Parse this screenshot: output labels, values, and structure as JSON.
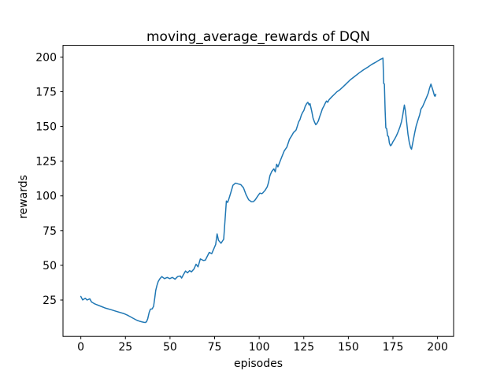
{
  "figure": {
    "title": "moving_average_rewards of DQN",
    "xlabel": "episodes",
    "ylabel": "rewards"
  },
  "chart_data": {
    "type": "line",
    "title": "moving_average_rewards of DQN",
    "xlabel": "episodes",
    "ylabel": "rewards",
    "x_ticks": [
      0,
      25,
      50,
      75,
      100,
      125,
      150,
      175,
      200
    ],
    "y_ticks": [
      25,
      50,
      75,
      100,
      125,
      150,
      175,
      200
    ],
    "xlim": [
      -10,
      209
    ],
    "ylim": [
      -1.2,
      208.4
    ],
    "grid": false,
    "legend_position": "none",
    "background_color": "#ffffff",
    "axes_color": "#000000",
    "series": [
      {
        "name": "moving_average_rewards",
        "color": "#1f77b4",
        "points": [
          [
            0,
            27.6
          ],
          [
            1,
            25.1
          ],
          [
            2.5,
            26.3
          ],
          [
            3.5,
            25.0
          ],
          [
            5,
            25.9
          ],
          [
            6,
            23.6
          ],
          [
            8,
            22.1
          ],
          [
            11,
            20.6
          ],
          [
            14,
            19.1
          ],
          [
            17,
            18.0
          ],
          [
            20,
            16.8
          ],
          [
            24,
            15.3
          ],
          [
            26,
            14.2
          ],
          [
            28,
            12.8
          ],
          [
            30,
            11.4
          ],
          [
            31.5,
            10.4
          ],
          [
            33,
            9.7
          ],
          [
            34.5,
            9.2
          ],
          [
            36,
            8.8
          ],
          [
            36.8,
            9.3
          ],
          [
            37.5,
            11.5
          ],
          [
            38.3,
            16.0
          ],
          [
            39,
            18.4
          ],
          [
            40,
            18.6
          ],
          [
            40.8,
            20.5
          ],
          [
            41.5,
            27.0
          ],
          [
            42,
            32.0
          ],
          [
            42.7,
            35.6
          ],
          [
            43.4,
            38.4
          ],
          [
            44.3,
            40.3
          ],
          [
            45.4,
            41.9
          ],
          [
            46.9,
            40.4
          ],
          [
            48.4,
            41.3
          ],
          [
            49.9,
            40.4
          ],
          [
            51.3,
            41.3
          ],
          [
            52.8,
            40.0
          ],
          [
            54.3,
            41.9
          ],
          [
            55.8,
            42.3
          ],
          [
            56.5,
            40.8
          ],
          [
            57.5,
            43.2
          ],
          [
            58.7,
            45.9
          ],
          [
            59.8,
            44.6
          ],
          [
            61,
            46.2
          ],
          [
            62,
            45.3
          ],
          [
            63.5,
            47.5
          ],
          [
            64.6,
            50.8
          ],
          [
            65.7,
            48.9
          ],
          [
            67,
            54.6
          ],
          [
            68.7,
            53.5
          ],
          [
            69.8,
            53.7
          ],
          [
            72,
            59.3
          ],
          [
            73.4,
            58.4
          ],
          [
            75.6,
            65.0
          ],
          [
            76.4,
            72.6
          ],
          [
            77.2,
            68.0
          ],
          [
            78.6,
            65.9
          ],
          [
            80.1,
            68.8
          ],
          [
            81.6,
            96.3
          ],
          [
            82.3,
            95.3
          ],
          [
            82.8,
            97.0
          ],
          [
            84,
            102.0
          ],
          [
            85.3,
            107.7
          ],
          [
            86.7,
            109.2
          ],
          [
            88.2,
            108.6
          ],
          [
            89.7,
            108.1
          ],
          [
            91.2,
            105.8
          ],
          [
            92.6,
            101.0
          ],
          [
            94.1,
            97.2
          ],
          [
            95.6,
            95.8
          ],
          [
            96.8,
            95.9
          ],
          [
            97.8,
            97.2
          ],
          [
            99.3,
            100.1
          ],
          [
            100.4,
            102.0
          ],
          [
            101.5,
            101.6
          ],
          [
            102.2,
            102.4
          ],
          [
            103.3,
            104.0
          ],
          [
            104.5,
            106.5
          ],
          [
            105.3,
            110.0
          ],
          [
            106,
            114.5
          ],
          [
            107,
            117.5
          ],
          [
            108.2,
            119.5
          ],
          [
            109,
            117.3
          ],
          [
            109.8,
            122.8
          ],
          [
            110.5,
            120.9
          ],
          [
            112.5,
            127.5
          ],
          [
            114,
            132.3
          ],
          [
            115.5,
            135.1
          ],
          [
            117,
            140.8
          ],
          [
            118.4,
            143.7
          ],
          [
            119.2,
            145.6
          ],
          [
            120,
            146.5
          ],
          [
            120.7,
            147.5
          ],
          [
            121.4,
            150.3
          ],
          [
            122.1,
            153.2
          ],
          [
            122.9,
            155.1
          ],
          [
            123.6,
            158.0
          ],
          [
            124.3,
            160.0
          ],
          [
            125.1,
            161.7
          ],
          [
            125.8,
            164.5
          ],
          [
            126.6,
            166.4
          ],
          [
            127.3,
            167.4
          ],
          [
            128,
            165.5
          ],
          [
            128.5,
            166.4
          ],
          [
            129.5,
            160.7
          ],
          [
            130.2,
            156.0
          ],
          [
            131,
            153.2
          ],
          [
            131.7,
            151.3
          ],
          [
            132.4,
            152.2
          ],
          [
            133.2,
            154.1
          ],
          [
            133.9,
            157.0
          ],
          [
            134.7,
            159.8
          ],
          [
            135.4,
            162.6
          ],
          [
            136.2,
            164.5
          ],
          [
            136.9,
            166.4
          ],
          [
            137.7,
            168.3
          ],
          [
            138.4,
            167.4
          ],
          [
            139.2,
            169.3
          ],
          [
            140.6,
            171.2
          ],
          [
            142.1,
            173.1
          ],
          [
            143.6,
            175.0
          ],
          [
            145,
            176.2
          ],
          [
            147,
            178.5
          ],
          [
            149,
            181.0
          ],
          [
            151,
            183.5
          ],
          [
            153.5,
            186.0
          ],
          [
            156,
            188.5
          ],
          [
            158.5,
            190.8
          ],
          [
            161,
            192.8
          ],
          [
            163,
            194.6
          ],
          [
            165,
            196.0
          ],
          [
            166.5,
            197.2
          ],
          [
            167.8,
            198.2
          ],
          [
            168.8,
            198.8
          ],
          [
            169.4,
            199.2
          ],
          [
            169.8,
            181.0
          ],
          [
            170.2,
            180.5
          ],
          [
            170.6,
            162.0
          ],
          [
            171,
            149.0
          ],
          [
            171.5,
            148.3
          ],
          [
            172,
            143.2
          ],
          [
            172.5,
            142.8
          ],
          [
            173,
            138.0
          ],
          [
            173.6,
            136.1
          ],
          [
            174.2,
            136.8
          ],
          [
            175,
            139.0
          ],
          [
            176,
            141.0
          ],
          [
            177,
            143.5
          ],
          [
            178,
            146.5
          ],
          [
            179,
            150.0
          ],
          [
            179.8,
            153.5
          ],
          [
            180.4,
            157.5
          ],
          [
            180.9,
            161.5
          ],
          [
            181.4,
            165.4
          ],
          [
            182,
            161.0
          ],
          [
            182.6,
            154.1
          ],
          [
            183.4,
            144.6
          ],
          [
            184.1,
            138.9
          ],
          [
            184.8,
            135.1
          ],
          [
            185.4,
            133.6
          ],
          [
            186.3,
            139.5
          ],
          [
            187.2,
            145.5
          ],
          [
            188,
            150.3
          ],
          [
            189,
            154.5
          ],
          [
            190,
            158.5
          ],
          [
            190.7,
            162.5
          ],
          [
            191.7,
            164.5
          ],
          [
            192.7,
            167.5
          ],
          [
            193.7,
            170.5
          ],
          [
            194.8,
            174.0
          ],
          [
            195.5,
            177.5
          ],
          [
            196.3,
            180.5
          ],
          [
            197.3,
            176.5
          ],
          [
            198.3,
            172.0
          ],
          [
            198.7,
            171.8
          ],
          [
            199,
            173.2
          ]
        ]
      }
    ]
  }
}
